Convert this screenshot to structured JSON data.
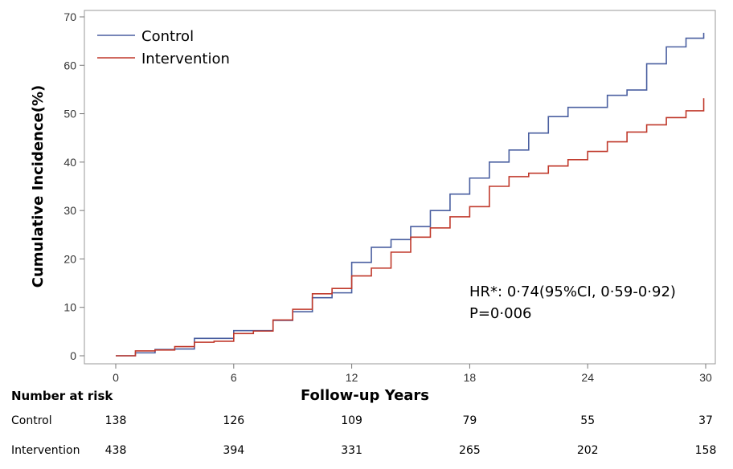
{
  "chart_data": {
    "type": "line",
    "style": "step",
    "xlabel": "Follow-up Years",
    "ylabel": "Cumulative Incidence(%)",
    "xlim": [
      -1,
      30
    ],
    "ylim": [
      -1,
      70
    ],
    "xticks": [
      0,
      6,
      12,
      18,
      24,
      30
    ],
    "yticks": [
      0,
      10,
      20,
      30,
      40,
      50,
      60,
      70
    ],
    "grid": false,
    "legend_position": "top-left",
    "series": [
      {
        "name": "Control",
        "color": "#4a5fa0",
        "x": [
          0,
          1,
          2,
          3,
          4,
          5,
          6,
          7,
          8,
          9,
          10,
          11,
          12,
          13,
          14,
          15,
          16,
          17,
          18,
          19,
          20,
          21,
          22,
          23,
          24,
          25,
          26,
          27,
          28,
          29,
          29.9
        ],
        "y": [
          0,
          0.6,
          1.3,
          1.4,
          3.6,
          3.6,
          5.2,
          5.2,
          7.3,
          9.1,
          12.0,
          13.0,
          19.3,
          22.4,
          24.0,
          26.7,
          30.0,
          33.4,
          36.7,
          40.0,
          42.5,
          46.0,
          49.4,
          51.3,
          51.3,
          53.8,
          54.9,
          60.3,
          63.8,
          65.6,
          66.7
        ]
      },
      {
        "name": "Intervention",
        "color": "#c0392b",
        "x": [
          0,
          1,
          2,
          3,
          4,
          5,
          6,
          7,
          8,
          9,
          10,
          11,
          12,
          13,
          14,
          15,
          16,
          17,
          18,
          19,
          20,
          21,
          22,
          23,
          24,
          25,
          26,
          27,
          28,
          29,
          29.9
        ],
        "y": [
          0,
          1.0,
          1.2,
          1.9,
          2.8,
          3.0,
          4.6,
          5.1,
          7.4,
          9.6,
          12.8,
          13.9,
          16.5,
          18.1,
          21.4,
          24.5,
          26.4,
          28.7,
          30.8,
          35.0,
          37.0,
          37.7,
          39.2,
          40.5,
          42.2,
          44.2,
          46.2,
          47.7,
          49.2,
          50.6,
          53.2
        ]
      }
    ],
    "annotations": [
      "HR*: 0·74(95%CI, 0·59-0·92)",
      "P=0·006"
    ],
    "risk_table": {
      "title": "Number at  risk",
      "rows": [
        {
          "label": "Control",
          "values": [
            "138",
            "126",
            "109",
            "79",
            "55",
            "37"
          ]
        },
        {
          "label": "Intervention",
          "values": [
            "438",
            "394",
            "331",
            "265",
            "202",
            "158"
          ]
        }
      ]
    }
  }
}
